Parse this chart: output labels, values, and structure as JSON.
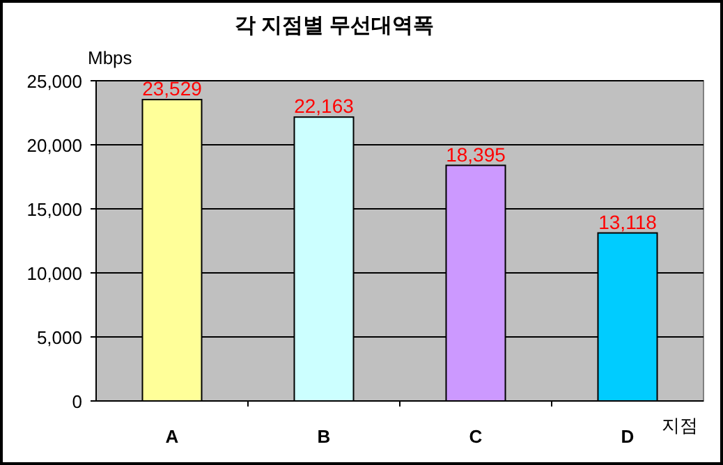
{
  "chart_data": {
    "type": "bar",
    "title": "각 지점별 무선대역폭",
    "ylabel": "Mbps",
    "xlabel": "지점",
    "categories": [
      "A",
      "B",
      "C",
      "D"
    ],
    "values": [
      23529,
      22163,
      18395,
      13118
    ],
    "colors": [
      "#ffff99",
      "#ccffff",
      "#cc99ff",
      "#00ccff"
    ],
    "value_labels": [
      "23,529",
      "22,163",
      "18,395",
      "13,118"
    ],
    "ylim": [
      0,
      25000
    ],
    "yticks": [
      {
        "value": 0,
        "label": "0"
      },
      {
        "value": 5000,
        "label": "5,000"
      },
      {
        "value": 10000,
        "label": "10,000"
      },
      {
        "value": 15000,
        "label": "15,000"
      },
      {
        "value": 20000,
        "label": "20,000"
      },
      {
        "value": 25000,
        "label": "25,000"
      }
    ],
    "grid": "y"
  }
}
